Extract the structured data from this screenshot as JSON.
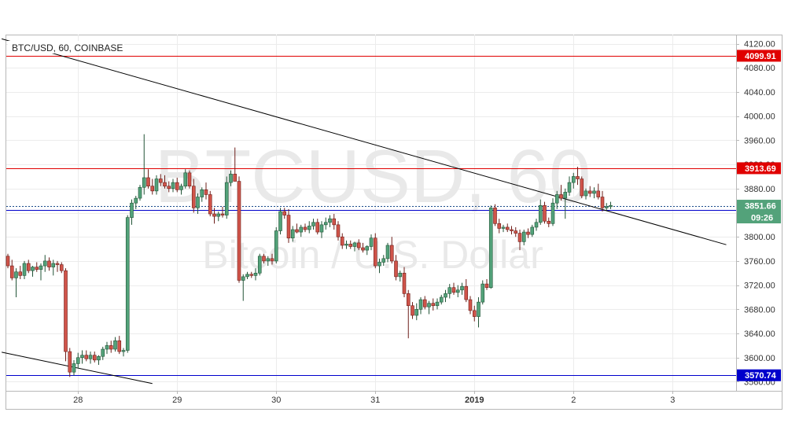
{
  "symbol_title": "BTC/USD, 60, COINBASE",
  "watermark": {
    "line1": "BTCUSD, 60",
    "line2": "Bitcoin / U.S. Dollar"
  },
  "chart_data": {
    "type": "candlestick",
    "ylim": [
      3545,
      4135
    ],
    "y_ticks": [
      3560,
      3600,
      3640,
      3680,
      3720,
      3760,
      3800,
      3840,
      3880,
      3920,
      3960,
      4000,
      4040,
      4080,
      4120
    ],
    "x_ticks": [
      {
        "label": "28",
        "bar": 17
      },
      {
        "label": "29",
        "bar": 41
      },
      {
        "label": "30",
        "bar": 65
      },
      {
        "label": "31",
        "bar": 89
      },
      {
        "label": "2019",
        "bar": 113,
        "bold": true
      },
      {
        "label": "2",
        "bar": 137
      },
      {
        "label": "3",
        "bar": 161
      }
    ],
    "grid": true,
    "colors": {
      "up": "#53a27a",
      "down": "#d0544a",
      "up_border": "#225437",
      "down_border": "#6e1f1a",
      "resistance": "#e00000",
      "support": "#0000cc",
      "trendline": "#000000"
    },
    "horizontal_lines": [
      {
        "price": 4099.91,
        "label": "4099.91",
        "color": "#e00000"
      },
      {
        "price": 3913.69,
        "label": "3913.69",
        "color": "#e00000"
      },
      {
        "price": 3844.19,
        "label": "3844.19",
        "color": "#0000cc"
      },
      {
        "price": 3570.74,
        "label": "3570.74",
        "color": "#0000cc"
      }
    ],
    "current_price": {
      "price": 3851.66,
      "label": "3851.66",
      "countdown": "09:26",
      "color": "#53a27a"
    },
    "trendlines": [
      {
        "from": {
          "bar": -1.5,
          "price": 4128
        },
        "to": {
          "bar": 174,
          "price": 3787
        }
      },
      {
        "from": {
          "bar": -1.5,
          "price": 3609
        },
        "to": {
          "bar": 35,
          "price": 3557
        }
      }
    ],
    "candles": [
      [
        3768,
        3772,
        3748,
        3752
      ],
      [
        3752,
        3762,
        3728,
        3732
      ],
      [
        3732,
        3748,
        3700,
        3742
      ],
      [
        3742,
        3752,
        3730,
        3736
      ],
      [
        3736,
        3760,
        3730,
        3756
      ],
      [
        3756,
        3762,
        3740,
        3744
      ],
      [
        3744,
        3752,
        3734,
        3750
      ],
      [
        3750,
        3758,
        3742,
        3746
      ],
      [
        3746,
        3756,
        3728,
        3752
      ],
      [
        3752,
        3770,
        3742,
        3760
      ],
      [
        3760,
        3766,
        3744,
        3750
      ],
      [
        3750,
        3762,
        3736,
        3756
      ],
      [
        3756,
        3760,
        3742,
        3754
      ],
      [
        3754,
        3758,
        3740,
        3744
      ],
      [
        3744,
        3748,
        3594,
        3610
      ],
      [
        3610,
        3616,
        3568,
        3576
      ],
      [
        3576,
        3596,
        3570,
        3590
      ],
      [
        3590,
        3608,
        3582,
        3600
      ],
      [
        3600,
        3612,
        3590,
        3604
      ],
      [
        3604,
        3612,
        3594,
        3598
      ],
      [
        3598,
        3610,
        3590,
        3604
      ],
      [
        3604,
        3610,
        3592,
        3596
      ],
      [
        3596,
        3604,
        3588,
        3602
      ],
      [
        3602,
        3618,
        3596,
        3614
      ],
      [
        3614,
        3626,
        3606,
        3620
      ],
      [
        3620,
        3628,
        3608,
        3614
      ],
      [
        3614,
        3634,
        3610,
        3628
      ],
      [
        3628,
        3636,
        3606,
        3610
      ],
      [
        3610,
        3616,
        3602,
        3612
      ],
      [
        3612,
        3836,
        3608,
        3832
      ],
      [
        3832,
        3862,
        3820,
        3856
      ],
      [
        3856,
        3868,
        3846,
        3864
      ],
      [
        3864,
        3886,
        3860,
        3882
      ],
      [
        3882,
        3970,
        3870,
        3898
      ],
      [
        3898,
        3912,
        3880,
        3884
      ],
      [
        3884,
        3896,
        3870,
        3876
      ],
      [
        3876,
        3902,
        3870,
        3896
      ],
      [
        3896,
        3904,
        3884,
        3890
      ],
      [
        3890,
        3902,
        3880,
        3884
      ],
      [
        3884,
        3892,
        3874,
        3880
      ],
      [
        3880,
        3896,
        3874,
        3890
      ],
      [
        3890,
        3898,
        3874,
        3878
      ],
      [
        3878,
        3888,
        3870,
        3884
      ],
      [
        3884,
        3912,
        3880,
        3906
      ],
      [
        3906,
        3910,
        3880,
        3884
      ],
      [
        3884,
        3896,
        3840,
        3848
      ],
      [
        3848,
        3872,
        3838,
        3866
      ],
      [
        3866,
        3882,
        3858,
        3878
      ],
      [
        3878,
        3890,
        3862,
        3870
      ],
      [
        3870,
        3876,
        3834,
        3838
      ],
      [
        3838,
        3848,
        3822,
        3834
      ],
      [
        3834,
        3842,
        3826,
        3838
      ],
      [
        3838,
        3850,
        3832,
        3836
      ],
      [
        3836,
        3900,
        3830,
        3890
      ],
      [
        3890,
        3910,
        3884,
        3904
      ],
      [
        3904,
        3948,
        3896,
        3892
      ],
      [
        3892,
        3900,
        3724,
        3728
      ],
      [
        3728,
        3738,
        3694,
        3734
      ],
      [
        3734,
        3742,
        3730,
        3738
      ],
      [
        3738,
        3742,
        3732,
        3736
      ],
      [
        3736,
        3748,
        3728,
        3740
      ],
      [
        3740,
        3772,
        3736,
        3768
      ],
      [
        3768,
        3772,
        3756,
        3760
      ],
      [
        3760,
        3768,
        3752,
        3764
      ],
      [
        3764,
        3772,
        3754,
        3760
      ],
      [
        3760,
        3816,
        3756,
        3810
      ],
      [
        3810,
        3848,
        3804,
        3842
      ],
      [
        3842,
        3848,
        3830,
        3836
      ],
      [
        3836,
        3846,
        3790,
        3798
      ],
      [
        3798,
        3818,
        3792,
        3812
      ],
      [
        3812,
        3822,
        3806,
        3808
      ],
      [
        3808,
        3820,
        3800,
        3816
      ],
      [
        3816,
        3822,
        3808,
        3812
      ],
      [
        3812,
        3826,
        3806,
        3818
      ],
      [
        3818,
        3830,
        3812,
        3824
      ],
      [
        3824,
        3830,
        3804,
        3808
      ],
      [
        3808,
        3826,
        3798,
        3820
      ],
      [
        3820,
        3832,
        3812,
        3824
      ],
      [
        3824,
        3836,
        3816,
        3830
      ],
      [
        3830,
        3838,
        3812,
        3820
      ],
      [
        3820,
        3826,
        3794,
        3800
      ],
      [
        3800,
        3806,
        3780,
        3786
      ],
      [
        3786,
        3794,
        3780,
        3788
      ],
      [
        3788,
        3794,
        3780,
        3784
      ],
      [
        3784,
        3792,
        3776,
        3790
      ],
      [
        3790,
        3796,
        3778,
        3782
      ],
      [
        3782,
        3790,
        3774,
        3778
      ],
      [
        3778,
        3786,
        3770,
        3784
      ],
      [
        3784,
        3804,
        3778,
        3798
      ],
      [
        3798,
        3806,
        3748,
        3752
      ],
      [
        3752,
        3764,
        3740,
        3758
      ],
      [
        3758,
        3770,
        3752,
        3764
      ],
      [
        3764,
        3790,
        3758,
        3786
      ],
      [
        3786,
        3800,
        3756,
        3760
      ],
      [
        3760,
        3770,
        3728,
        3734
      ],
      [
        3734,
        3744,
        3726,
        3740
      ],
      [
        3740,
        3750,
        3700,
        3706
      ],
      [
        3706,
        3712,
        3632,
        3686
      ],
      [
        3686,
        3692,
        3664,
        3670
      ],
      [
        3670,
        3690,
        3662,
        3680
      ],
      [
        3680,
        3700,
        3672,
        3696
      ],
      [
        3696,
        3702,
        3680,
        3684
      ],
      [
        3684,
        3694,
        3672,
        3690
      ],
      [
        3690,
        3698,
        3678,
        3686
      ],
      [
        3686,
        3698,
        3680,
        3692
      ],
      [
        3692,
        3704,
        3688,
        3700
      ],
      [
        3700,
        3712,
        3692,
        3706
      ],
      [
        3706,
        3722,
        3698,
        3716
      ],
      [
        3716,
        3724,
        3704,
        3708
      ],
      [
        3708,
        3720,
        3700,
        3712
      ],
      [
        3712,
        3724,
        3704,
        3718
      ],
      [
        3718,
        3730,
        3692,
        3696
      ],
      [
        3696,
        3702,
        3672,
        3678
      ],
      [
        3678,
        3686,
        3660,
        3668
      ],
      [
        3668,
        3700,
        3650,
        3692
      ],
      [
        3692,
        3728,
        3688,
        3722
      ],
      [
        3722,
        3730,
        3712,
        3716
      ],
      [
        3716,
        3852,
        3714,
        3848
      ],
      [
        3848,
        3854,
        3818,
        3822
      ],
      [
        3822,
        3830,
        3806,
        3814
      ],
      [
        3814,
        3820,
        3808,
        3816
      ],
      [
        3816,
        3822,
        3808,
        3812
      ],
      [
        3812,
        3818,
        3804,
        3810
      ],
      [
        3810,
        3816,
        3800,
        3806
      ],
      [
        3806,
        3812,
        3778,
        3792
      ],
      [
        3792,
        3812,
        3786,
        3808
      ],
      [
        3808,
        3814,
        3798,
        3804
      ],
      [
        3804,
        3820,
        3800,
        3816
      ],
      [
        3816,
        3830,
        3810,
        3824
      ],
      [
        3824,
        3862,
        3820,
        3852
      ],
      [
        3852,
        3858,
        3822,
        3826
      ],
      [
        3826,
        3832,
        3816,
        3822
      ],
      [
        3822,
        3864,
        3818,
        3856
      ],
      [
        3856,
        3876,
        3846,
        3870
      ],
      [
        3870,
        3886,
        3860,
        3864
      ],
      [
        3864,
        3880,
        3830,
        3874
      ],
      [
        3874,
        3900,
        3868,
        3890
      ],
      [
        3890,
        3906,
        3880,
        3900
      ],
      [
        3900,
        3916,
        3886,
        3896
      ],
      [
        3896,
        3900,
        3864,
        3868
      ],
      [
        3868,
        3880,
        3862,
        3876
      ],
      [
        3876,
        3884,
        3866,
        3872
      ],
      [
        3872,
        3882,
        3864,
        3876
      ],
      [
        3876,
        3888,
        3862,
        3866
      ],
      [
        3866,
        3876,
        3842,
        3848
      ],
      [
        3848,
        3856,
        3844,
        3850
      ],
      [
        3850,
        3858,
        3846,
        3852
      ]
    ]
  }
}
